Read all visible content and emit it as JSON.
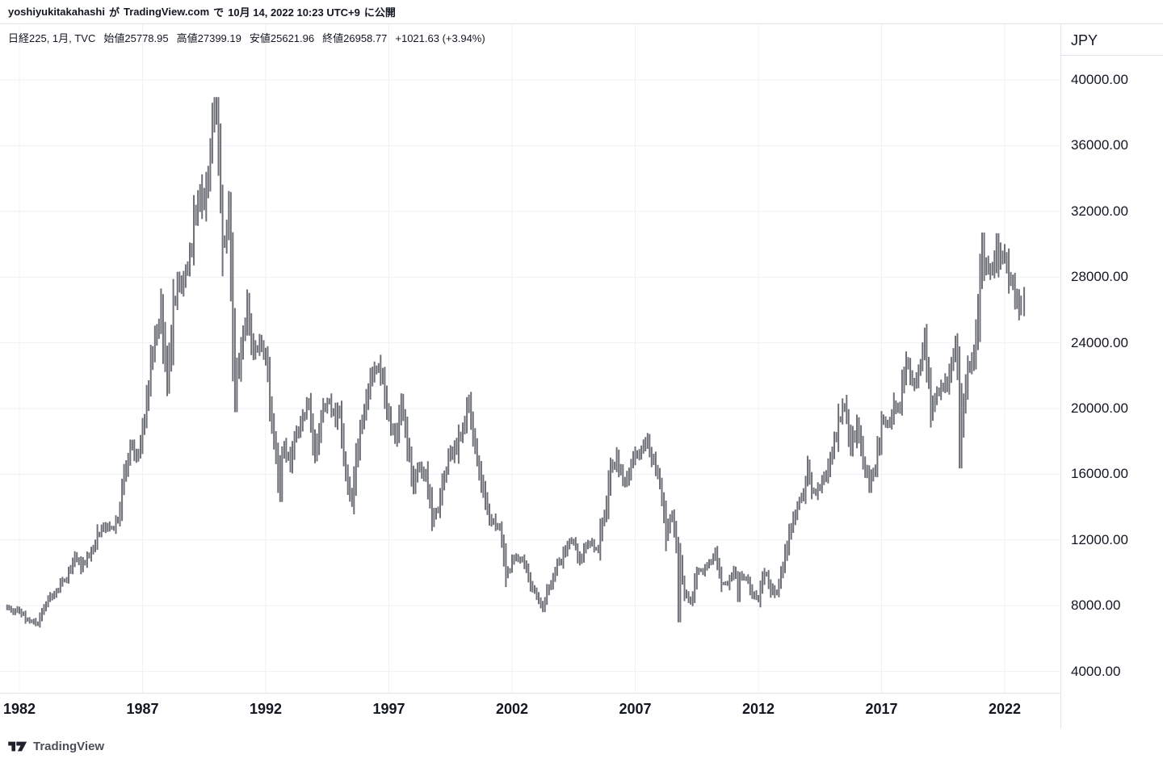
{
  "attribution": {
    "username": "yoshiyukitakahashi",
    "particle_1": "が",
    "site": "TradingView.com",
    "particle_2": "で",
    "timestamp": "10月 14, 2022 10:23 UTC+9",
    "suffix": "に公開"
  },
  "legend": {
    "symbol_line": "日経225, 1月, TVC",
    "ohlc": [
      {
        "label": "始値",
        "value": "25778.95"
      },
      {
        "label": "高値",
        "value": "27399.19"
      },
      {
        "label": "安値",
        "value": "25621.96"
      },
      {
        "label": "終値",
        "value": "26958.77"
      }
    ],
    "change": "+1021.63 (+3.94%)"
  },
  "price_axis": {
    "currency": "JPY",
    "ticks": [
      "40000.00",
      "36000.00",
      "32000.00",
      "28000.00",
      "24000.00",
      "20000.00",
      "16000.00",
      "12000.00",
      "8000.00",
      "4000.00"
    ]
  },
  "time_axis": {
    "ticks": [
      "1982",
      "1987",
      "1992",
      "1997",
      "2002",
      "2007",
      "2012",
      "2017",
      "2022"
    ]
  },
  "footer": {
    "brand": "TradingView",
    "logo_icon": "tradingview-logo"
  },
  "colors": {
    "bar": "#6e7077",
    "grid": "#eef1f6",
    "border": "#e0e3eb",
    "text": "#131722",
    "muted": "#4a4e59",
    "background": "#ffffff"
  },
  "chart_data": {
    "type": "bar",
    "subtype": "monthly-high-low-bars",
    "title": "日経225, 1月, TVC",
    "symbol": "日経225",
    "interval": "1月",
    "exchange": "TVC",
    "ylabel": "JPY",
    "xlabel": "",
    "grid": true,
    "legend_position": "top-left",
    "x_ticks": [
      1982,
      1987,
      1992,
      1997,
      2002,
      2007,
      2012,
      2017,
      2022
    ],
    "y_ticks": [
      40000,
      36000,
      32000,
      28000,
      24000,
      20000,
      16000,
      12000,
      8000,
      4000
    ],
    "xlim": [
      1981.2,
      2024.3
    ],
    "ylim": [
      2700,
      43400
    ],
    "series": {
      "name": "日経225",
      "start": 1981.5,
      "step_years": 0.25,
      "closes": [
        7930,
        7660,
        7720,
        7260,
        7120,
        6910,
        8020,
        8520,
        8810,
        9400,
        9890,
        11100,
        10420,
        10930,
        11540,
        12590,
        12880,
        12790,
        13110,
        15860,
        17650,
        16910,
        18700,
        21570,
        24490,
        26010,
        21560,
        26260,
        27940,
        27920,
        30160,
        32840,
        32950,
        35640,
        38920,
        29980,
        31940,
        20980,
        23850,
        26290,
        23290,
        23920,
        22980,
        19350,
        15950,
        17400,
        16920,
        18590,
        19590,
        20100,
        17420,
        19610,
        20640,
        19560,
        19720,
        16140,
        14520,
        17910,
        19870,
        21410,
        22530,
        21560,
        19360,
        18000,
        20600,
        17890,
        15260,
        16530,
        15830,
        13410,
        13840,
        15840,
        17530,
        17610,
        18930,
        20340,
        17410,
        15750,
        13790,
        12990,
        12970,
        9770,
        10540,
        11030,
        10620,
        9380,
        8580,
        7970,
        9080,
        10220,
        10680,
        11720,
        11860,
        10820,
        11490,
        11670,
        11580,
        13570,
        16110,
        17060,
        15510,
        16130,
        17230,
        17290,
        18140,
        16790,
        15310,
        12530,
        13480,
        11260,
        8860,
        8110,
        9960,
        10130,
        10550,
        11090,
        9380,
        9370,
        10230,
        9760,
        9820,
        8700,
        8460,
        10080,
        9010,
        8870,
        10400,
        12400,
        13680,
        14460,
        16290,
        14830,
        15160,
        16170,
        17450,
        19210,
        20240,
        17390,
        19030,
        16760,
        15580,
        16450,
        19110,
        18910,
        20030,
        20360,
        22760,
        21450,
        22300,
        24120,
        20010,
        21210,
        21280,
        21760,
        23660,
        18920,
        22290,
        23190,
        27440,
        29180,
        28790,
        29450,
        28790,
        27820,
        26390,
        25940
      ]
    },
    "extremes": [
      {
        "t": 1982.6,
        "low": 6849
      },
      {
        "t": 1989.96,
        "high": 38957
      },
      {
        "t": 1990.79,
        "low": 19781
      },
      {
        "t": 1992.63,
        "low": 14309
      },
      {
        "t": 1995.54,
        "low": 14295
      },
      {
        "t": 1998.79,
        "low": 12788
      },
      {
        "t": 2000.29,
        "high": 20833
      },
      {
        "t": 2003.29,
        "low": 7603
      },
      {
        "t": 2007.54,
        "high": 18297
      },
      {
        "t": 2008.8,
        "low": 6995
      },
      {
        "t": 2011.21,
        "low": 8227
      },
      {
        "t": 2016.54,
        "low": 14864
      },
      {
        "t": 2018.79,
        "high": 24448
      },
      {
        "t": 2020.21,
        "low": 16358
      },
      {
        "t": 2021.13,
        "high": 30714
      },
      {
        "t": 2021.71,
        "high": 30670
      }
    ],
    "all_time_high": 38957,
    "last_bar": {
      "t": 2022.79,
      "date": "2022-10",
      "open": 25778.95,
      "high": 27399.19,
      "low": 25621.96,
      "close": 26958.77,
      "change": "+1021.63",
      "change_pct": "+3.94%"
    }
  }
}
